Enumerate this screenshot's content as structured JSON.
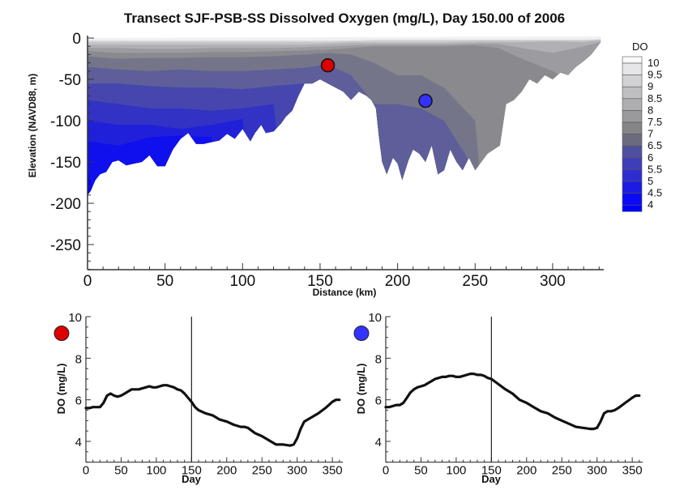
{
  "chart_data": [
    {
      "type": "heatmap",
      "subtype": "filled-contour-transect",
      "title": "Transect SJF-PSB-SS Dissolved Oxygen (mg/L), Day 150.00 of 2006",
      "xlabel": "Distance (km)",
      "ylabel": "Elevation (NAVD88, m)",
      "xlim": [
        0,
        335
      ],
      "ylim": [
        -280,
        0
      ],
      "xticks": [
        "0",
        "50",
        "100",
        "150",
        "200",
        "250",
        "300"
      ],
      "yticks": [
        "0",
        "-50",
        "-100",
        "-150",
        "-200",
        "-250"
      ],
      "xtick_values": [
        0,
        50,
        100,
        150,
        200,
        250,
        300
      ],
      "ytick_values": [
        0,
        -50,
        -100,
        -150,
        -200,
        -250
      ],
      "colorbar": {
        "title": "DO",
        "labels": [
          "10",
          "9.5",
          "9",
          "8.5",
          "8",
          "7.5",
          "7",
          "6.5",
          "6",
          "5.5",
          "5",
          "4.5",
          "4"
        ],
        "levels": [
          10,
          9.5,
          9,
          8.5,
          8,
          7.5,
          7,
          6.5,
          6,
          5.5,
          5,
          4.5,
          4
        ],
        "colors": [
          "#fafafa",
          "#e6e6e8",
          "#d2d2d4",
          "#bfbfc2",
          "#aeaeb0",
          "#9a9a9c",
          "#858588",
          "#6b6b80",
          "#4f4fa0",
          "#3e3eb8",
          "#2e2ed0",
          "#1b1be4",
          "#0a0af5",
          "#0000ff"
        ],
        "position": "right"
      },
      "bathymetry": {
        "distance_km": [
          0,
          2,
          5,
          8,
          12,
          16,
          20,
          25,
          30,
          35,
          40,
          45,
          50,
          55,
          60,
          65,
          70,
          75,
          80,
          85,
          90,
          95,
          100,
          105,
          108,
          112,
          115,
          120,
          125,
          128,
          132,
          136,
          140,
          145,
          150,
          155,
          160,
          165,
          170,
          175,
          180,
          183,
          186,
          188,
          190,
          193,
          197,
          200,
          203,
          207,
          210,
          214,
          218,
          222,
          226,
          230,
          234,
          238,
          242,
          246,
          250,
          254,
          258,
          262,
          266,
          270,
          275,
          280,
          285,
          290,
          295,
          300,
          305,
          310,
          315,
          320,
          325,
          331
        ],
        "bottom_m": [
          -190,
          -185,
          -172,
          -165,
          -162,
          -150,
          -148,
          -154,
          -152,
          -150,
          -142,
          -155,
          -155,
          -135,
          -122,
          -115,
          -128,
          -128,
          -126,
          -124,
          -116,
          -122,
          -110,
          -125,
          -115,
          -105,
          -115,
          -113,
          -103,
          -95,
          -88,
          -70,
          -55,
          -55,
          -50,
          -55,
          -60,
          -65,
          -75,
          -65,
          -70,
          -75,
          -85,
          -120,
          -150,
          -165,
          -145,
          -152,
          -172,
          -148,
          -135,
          -140,
          -150,
          -130,
          -165,
          -160,
          -135,
          -150,
          -160,
          -145,
          -160,
          -150,
          -140,
          -135,
          -130,
          -80,
          -75,
          -65,
          -50,
          -55,
          -45,
          -50,
          -42,
          -45,
          -35,
          -28,
          -20,
          -5
        ]
      },
      "markers": [
        {
          "name": "red-station",
          "distance_km": 155,
          "elevation_m": -33,
          "color": "#dd0000"
        },
        {
          "name": "blue-station",
          "distance_km": 218,
          "elevation_m": -76,
          "color": "#3333ff"
        }
      ]
    },
    {
      "type": "line",
      "title": "",
      "marker_color": "#dd0000",
      "xlabel": "Day",
      "ylabel": "DO (mg/L)",
      "xlim": [
        0,
        365
      ],
      "ylim": [
        3,
        10
      ],
      "xticks": [
        "0",
        "50",
        "100",
        "150",
        "200",
        "250",
        "300",
        "350"
      ],
      "xtick_values": [
        0,
        50,
        100,
        150,
        200,
        250,
        300,
        350
      ],
      "yticks": [
        "4",
        "6",
        "8",
        "10"
      ],
      "ytick_values": [
        4,
        6,
        8,
        10
      ],
      "current_day": 150,
      "series": [
        {
          "name": "DO red station",
          "x": [
            0,
            5,
            10,
            15,
            20,
            25,
            30,
            35,
            40,
            45,
            50,
            55,
            60,
            65,
            70,
            75,
            80,
            85,
            90,
            95,
            100,
            105,
            110,
            115,
            120,
            125,
            130,
            135,
            140,
            145,
            150,
            155,
            160,
            170,
            180,
            190,
            200,
            210,
            220,
            225,
            230,
            240,
            250,
            260,
            270,
            280,
            290,
            295,
            300,
            305,
            310,
            320,
            330,
            340,
            350,
            355,
            360
          ],
          "y": [
            5.6,
            5.6,
            5.65,
            5.65,
            5.65,
            5.85,
            6.2,
            6.3,
            6.2,
            6.15,
            6.2,
            6.3,
            6.4,
            6.5,
            6.5,
            6.5,
            6.55,
            6.6,
            6.65,
            6.6,
            6.6,
            6.65,
            6.7,
            6.7,
            6.65,
            6.6,
            6.5,
            6.45,
            6.3,
            6.1,
            5.9,
            5.65,
            5.5,
            5.35,
            5.25,
            5.05,
            4.95,
            4.8,
            4.7,
            4.7,
            4.65,
            4.4,
            4.25,
            4.05,
            3.85,
            3.85,
            3.8,
            3.85,
            4.15,
            4.6,
            4.95,
            5.15,
            5.35,
            5.6,
            5.9,
            6.0,
            6.0
          ]
        }
      ]
    },
    {
      "type": "line",
      "title": "",
      "marker_color": "#3333ff",
      "xlabel": "Day",
      "ylabel": "DO (mg/L)",
      "xlim": [
        0,
        365
      ],
      "ylim": [
        3,
        10
      ],
      "xticks": [
        "0",
        "50",
        "100",
        "150",
        "200",
        "250",
        "300",
        "350"
      ],
      "xtick_values": [
        0,
        50,
        100,
        150,
        200,
        250,
        300,
        350
      ],
      "yticks": [
        "4",
        "6",
        "8",
        "10"
      ],
      "ytick_values": [
        4,
        6,
        8,
        10
      ],
      "current_day": 150,
      "series": [
        {
          "name": "DO blue station",
          "x": [
            0,
            5,
            10,
            15,
            20,
            25,
            30,
            35,
            40,
            45,
            50,
            55,
            60,
            65,
            70,
            75,
            80,
            85,
            90,
            95,
            100,
            105,
            110,
            115,
            120,
            125,
            130,
            135,
            140,
            145,
            150,
            160,
            170,
            180,
            190,
            200,
            210,
            220,
            230,
            240,
            250,
            260,
            270,
            280,
            290,
            295,
            300,
            305,
            310,
            315,
            320,
            325,
            330,
            340,
            350,
            355,
            360
          ],
          "y": [
            5.65,
            5.65,
            5.7,
            5.75,
            5.75,
            5.85,
            6.1,
            6.35,
            6.5,
            6.6,
            6.65,
            6.7,
            6.8,
            6.9,
            7.0,
            7.05,
            7.1,
            7.1,
            7.15,
            7.15,
            7.1,
            7.1,
            7.15,
            7.2,
            7.25,
            7.25,
            7.2,
            7.2,
            7.15,
            7.05,
            7.0,
            6.75,
            6.5,
            6.3,
            6.0,
            5.85,
            5.65,
            5.45,
            5.35,
            5.15,
            5.0,
            4.85,
            4.7,
            4.65,
            4.6,
            4.6,
            4.65,
            4.95,
            5.35,
            5.45,
            5.45,
            5.5,
            5.6,
            5.85,
            6.1,
            6.2,
            6.2
          ]
        }
      ]
    }
  ]
}
